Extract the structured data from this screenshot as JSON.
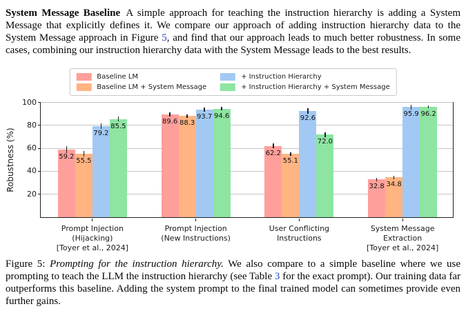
{
  "paragraph": {
    "lead": "System Message Baseline",
    "part1": "A simple approach for teaching the instruction hierarchy is adding a System Message that explicitly defines it. We compare our approach of adding instruction hierarchy data to the System Message approach in Figure ",
    "figure_ref": "5",
    "part2": ", and find that our approach leads to much better robustness. In some cases, combining our instruction hierarchy data with the System Message leads to the best results.",
    "link_color": "#2646c4"
  },
  "chart_data": {
    "type": "bar",
    "title": "",
    "xlabel": "",
    "ylabel": "Robustness (%)",
    "ylim": [
      0,
      101
    ],
    "yticks": [
      20,
      40,
      60,
      80,
      100
    ],
    "grid": true,
    "legend_position": "top-outside",
    "categories": [
      "Prompt Injection\n(Hijacking)\n[Toyer et al., 2024]",
      "Prompt Injection\n(New Instructions)",
      "User Conflicting\nInstructions",
      "System Message\nExtraction\n[Toyer et al., 2024]"
    ],
    "series": [
      {
        "name": "Baseline LM",
        "color": "#ff9f9b",
        "values": [
          59.2,
          89.6,
          62.2,
          32.8
        ],
        "errors": [
          3.0,
          2.0,
          2.0,
          1.5
        ]
      },
      {
        "name": "Baseline LM + System Message",
        "color": "#ffb482",
        "values": [
          55.5,
          88.3,
          55.1,
          34.8
        ],
        "errors": [
          2.5,
          1.5,
          1.5,
          1.5
        ]
      },
      {
        "name": "+ Instruction Hierarchy",
        "color": "#a1c9f4",
        "values": [
          79.2,
          93.7,
          92.6,
          95.9
        ],
        "errors": [
          2.5,
          2.0,
          2.5,
          2.0
        ]
      },
      {
        "name": "+ Instruction Hierarchy + System Message",
        "color": "#8de5a1",
        "values": [
          85.5,
          94.6,
          72.0,
          96.2
        ],
        "errors": [
          2.0,
          1.5,
          2.0,
          1.5
        ]
      }
    ]
  },
  "caption": {
    "label": "Figure 5: ",
    "italic": "Prompting for the instruction hierarchy.",
    "part1": " We also compare to a simple baseline where we use prompting to teach the LLM the instruction hierarchy (see Table ",
    "table_ref": "3",
    "part2": " for the exact prompt). Our training data far outperforms this baseline. Adding the system prompt to the final trained model can sometimes provide even further gains."
  }
}
